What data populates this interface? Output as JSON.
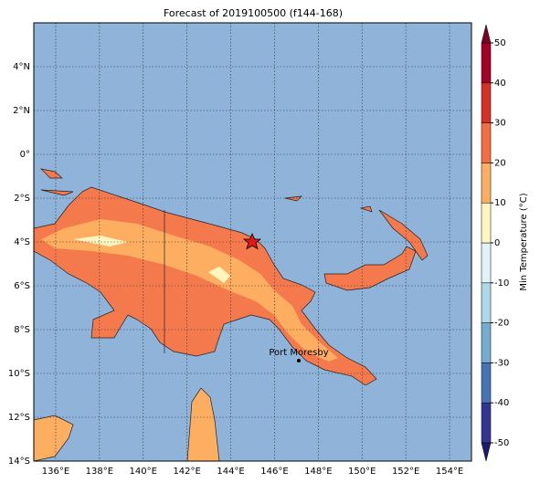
{
  "title": "Forecast of 2019100500 (f144-168)",
  "map": {
    "xlim": [
      135,
      155
    ],
    "ylim": [
      -14,
      6
    ],
    "xticks": [
      {
        "value": 136,
        "label": "136°E"
      },
      {
        "value": 138,
        "label": "138°E"
      },
      {
        "value": 140,
        "label": "140°E"
      },
      {
        "value": 142,
        "label": "142°E"
      },
      {
        "value": 144,
        "label": "144°E"
      },
      {
        "value": 146,
        "label": "146°E"
      },
      {
        "value": 148,
        "label": "148°E"
      },
      {
        "value": 150,
        "label": "150°E"
      },
      {
        "value": 152,
        "label": "152°E"
      },
      {
        "value": 154,
        "label": "154°E"
      }
    ],
    "yticks": [
      {
        "value": 4,
        "label": "4°N"
      },
      {
        "value": 2,
        "label": "2°N"
      },
      {
        "value": 0,
        "label": "0°"
      },
      {
        "value": -2,
        "label": "2°S"
      },
      {
        "value": -4,
        "label": "4°S"
      },
      {
        "value": -6,
        "label": "6°S"
      },
      {
        "value": -8,
        "label": "8°S"
      },
      {
        "value": -10,
        "label": "10°S"
      },
      {
        "value": -12,
        "label": "12°S"
      },
      {
        "value": -14,
        "label": "14°S"
      }
    ],
    "city": "Port Moresby"
  },
  "colorbar": {
    "label": "Min Temperature (°C)",
    "ticks": [
      -50,
      -40,
      -30,
      -20,
      -10,
      0,
      10,
      20,
      30,
      40,
      50
    ],
    "colors": [
      "#313695",
      "#4575b4",
      "#74add1",
      "#abd9e9",
      "#e0f3f8",
      "#fff5c0",
      "#fdae61",
      "#f46d43",
      "#d73027",
      "#a50026"
    ],
    "extend_colors": [
      "#1a1a6e",
      "#7f0026"
    ]
  }
}
